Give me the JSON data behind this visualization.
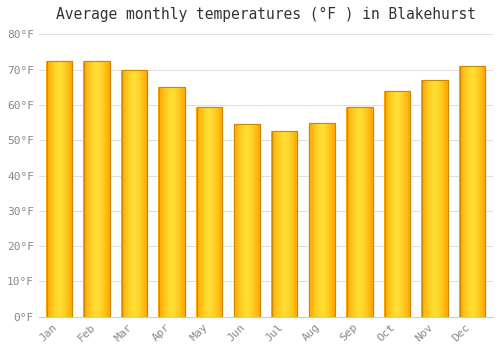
{
  "title": "Average monthly temperatures (°F ) in Blakehurst",
  "months": [
    "Jan",
    "Feb",
    "Mar",
    "Apr",
    "May",
    "Jun",
    "Jul",
    "Aug",
    "Sep",
    "Oct",
    "Nov",
    "Dec"
  ],
  "values": [
    72.5,
    72.5,
    70,
    65,
    59.5,
    54.5,
    52.5,
    55,
    59.5,
    64,
    67,
    71
  ],
  "bar_color_edge": "#CC8800",
  "bar_color_dark": "#FFA500",
  "bar_color_light": "#FFD700",
  "ylim": [
    0,
    82
  ],
  "yticks": [
    0,
    10,
    20,
    30,
    40,
    50,
    60,
    70,
    80
  ],
  "ytick_labels": [
    "0°F",
    "10°F",
    "20°F",
    "30°F",
    "40°F",
    "50°F",
    "60°F",
    "70°F",
    "80°F"
  ],
  "background_color": "#FFFFFF",
  "grid_color": "#DDDDDD",
  "title_fontsize": 10.5,
  "tick_fontsize": 8,
  "font_family": "monospace",
  "tick_color": "#888888"
}
